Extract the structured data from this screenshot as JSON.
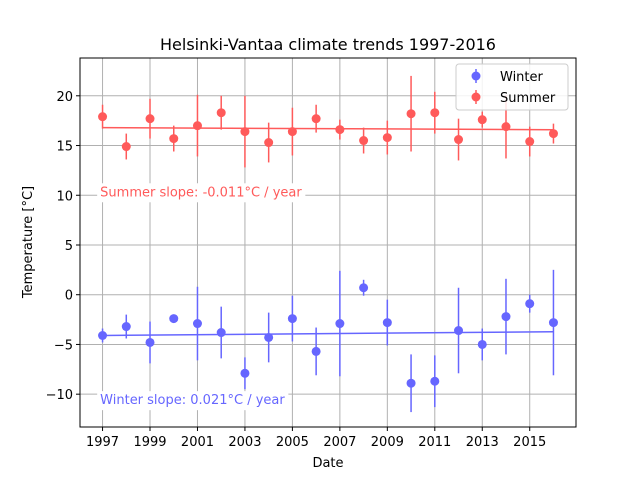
{
  "chart_data": {
    "type": "scatter",
    "title": "Helsinki-Vantaa climate trends 1997-2016",
    "xlabel": "Date",
    "ylabel": "Temperature [°C]",
    "xlim": [
      1996.05,
      2016.95
    ],
    "ylim": [
      -13.3,
      23.8
    ],
    "xticks": [
      1997,
      1999,
      2001,
      2003,
      2005,
      2007,
      2009,
      2011,
      2013,
      2015
    ],
    "yticks": [
      -10,
      -5,
      0,
      5,
      10,
      15,
      20
    ],
    "grid": true,
    "grid_axis": "x and y",
    "legend_position": "upper right",
    "series": [
      {
        "name": "Winter",
        "color": "#6666ff",
        "x": [
          1997,
          1998,
          1999,
          2000,
          2001,
          2002,
          2003,
          2004,
          2005,
          2006,
          2007,
          2008,
          2009,
          2010,
          2011,
          2012,
          2013,
          2014,
          2015,
          2016
        ],
        "y": [
          -4.1,
          -3.2,
          -4.8,
          -2.4,
          -2.9,
          -3.8,
          -7.9,
          -4.3,
          -2.4,
          -5.7,
          -2.9,
          0.7,
          -2.8,
          -8.9,
          -8.7,
          -3.6,
          -5.0,
          -2.2,
          -0.9,
          -2.8
        ],
        "yerr": [
          0.7,
          1.2,
          2.1,
          0.2,
          3.7,
          2.6,
          1.6,
          2.5,
          2.3,
          2.4,
          5.3,
          0.8,
          2.3,
          2.9,
          2.6,
          4.3,
          1.6,
          3.8,
          0.9,
          5.3
        ],
        "trend": {
          "x": [
            1997,
            2016
          ],
          "y": [
            -4.1,
            -3.72
          ]
        },
        "slope_label": "Winter slope: 0.021°C / year"
      },
      {
        "name": "Summer",
        "color": "#ff5a5a",
        "x": [
          1997,
          1998,
          1999,
          2000,
          2001,
          2002,
          2003,
          2004,
          2005,
          2006,
          2007,
          2008,
          2009,
          2010,
          2011,
          2012,
          2013,
          2014,
          2015,
          2016
        ],
        "y": [
          17.9,
          14.9,
          17.7,
          15.7,
          17.0,
          18.3,
          16.4,
          15.3,
          16.4,
          17.7,
          16.6,
          15.5,
          15.8,
          18.2,
          18.3,
          15.6,
          17.6,
          16.9,
          15.4,
          16.2
        ],
        "yerr": [
          1.2,
          1.3,
          2.0,
          1.3,
          3.1,
          1.7,
          3.6,
          2.0,
          2.4,
          1.4,
          1.0,
          1.3,
          1.7,
          3.8,
          2.1,
          2.1,
          0.8,
          3.2,
          1.5,
          1.0
        ],
        "trend": {
          "x": [
            1997,
            2016
          ],
          "y": [
            16.8,
            16.59
          ]
        },
        "slope_label": "Summer slope: -0.011°C / year"
      }
    ]
  }
}
